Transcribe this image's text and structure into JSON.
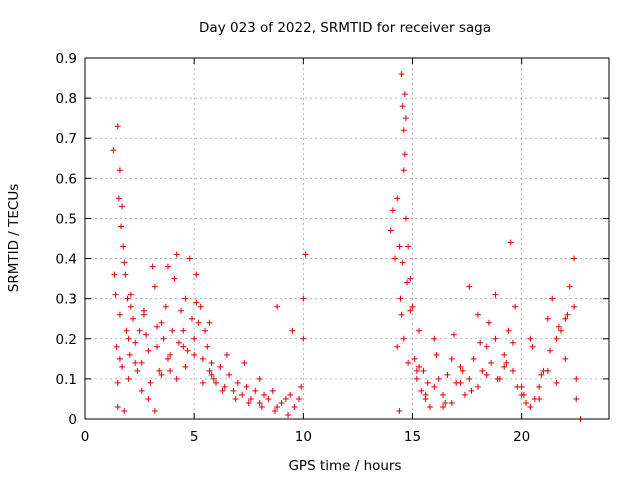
{
  "chart_data": {
    "type": "scatter",
    "title": "Day 023 of 2022, SRMTID for receiver saga",
    "xlabel": "GPS time / hours",
    "ylabel": "SRMTID / TECUs",
    "xlim": [
      0,
      24
    ],
    "ylim": [
      0,
      0.9
    ],
    "xticks": [
      0,
      5,
      10,
      15,
      20
    ],
    "yticks": [
      0,
      0.1,
      0.2,
      0.3,
      0.4,
      0.5,
      0.6,
      0.7,
      0.8,
      0.9
    ],
    "xtick_labels": [
      "0",
      "5",
      "10",
      "15",
      "20"
    ],
    "ytick_labels": [
      "0",
      "0.1",
      "0.2",
      "0.3",
      "0.4",
      "0.5",
      "0.6",
      "0.7",
      "0.8",
      "0.9"
    ],
    "grid": true,
    "marker": "+",
    "marker_color": "#e00000",
    "series": [
      {
        "name": "SRMTID",
        "x": [
          1.3,
          1.35,
          1.4,
          1.45,
          1.5,
          1.5,
          1.55,
          1.6,
          1.6,
          1.65,
          1.7,
          1.7,
          1.75,
          1.8,
          1.85,
          1.9,
          1.95,
          2.0,
          2.05,
          2.1,
          2.2,
          2.3,
          2.4,
          2.5,
          2.6,
          2.7,
          2.8,
          2.9,
          3.0,
          3.1,
          3.2,
          3.3,
          3.4,
          3.5,
          3.6,
          3.7,
          3.8,
          3.9,
          4.0,
          4.1,
          4.2,
          4.3,
          4.4,
          4.5,
          4.6,
          4.7,
          4.8,
          4.9,
          5.0,
          5.1,
          5.2,
          5.3,
          5.4,
          5.5,
          5.6,
          5.7,
          5.8,
          5.9,
          6.0,
          6.2,
          6.4,
          6.6,
          6.8,
          7.0,
          7.2,
          7.4,
          7.6,
          7.8,
          8.0,
          8.2,
          8.4,
          8.6,
          8.8,
          9.0,
          9.2,
          9.4,
          9.6,
          9.8,
          10.0,
          10.1,
          1.5,
          1.8,
          2.0,
          2.3,
          2.6,
          2.9,
          3.2,
          3.5,
          3.8,
          4.2,
          4.6,
          5.0,
          5.4,
          5.8,
          6.3,
          6.9,
          7.5,
          8.1,
          8.7,
          9.3,
          9.9,
          1.6,
          2.1,
          2.7,
          3.3,
          3.9,
          4.5,
          5.1,
          5.7,
          6.5,
          7.3,
          8.0,
          8.8,
          9.5,
          10.0,
          14.0,
          14.1,
          14.2,
          14.3,
          14.4,
          14.45,
          14.5,
          14.55,
          14.6,
          14.65,
          14.7,
          14.8,
          14.9,
          15.0,
          15.1,
          15.2,
          15.3,
          15.4,
          15.5,
          15.6,
          15.8,
          16.0,
          16.2,
          16.4,
          16.6,
          16.8,
          17.0,
          17.2,
          17.4,
          17.6,
          17.8,
          18.0,
          18.2,
          18.4,
          18.6,
          18.8,
          19.0,
          19.2,
          19.4,
          19.5,
          19.6,
          19.8,
          20.0,
          20.2,
          20.4,
          20.6,
          20.8,
          21.0,
          21.2,
          21.4,
          21.6,
          21.8,
          22.0,
          22.2,
          22.4,
          22.5,
          22.7,
          14.3,
          14.6,
          14.9,
          15.3,
          15.7,
          16.1,
          16.5,
          16.9,
          17.3,
          17.7,
          18.1,
          18.5,
          18.9,
          19.3,
          19.7,
          20.1,
          20.5,
          20.9,
          21.3,
          21.7,
          22.1,
          22.5,
          14.4,
          14.8,
          15.2,
          15.6,
          16.0,
          16.4,
          16.8,
          17.2,
          17.6,
          18.0,
          18.4,
          18.8,
          19.2,
          19.6,
          20.0,
          20.4,
          20.8,
          21.2,
          21.6,
          22.0,
          22.4,
          14.5,
          14.55,
          14.6,
          14.65,
          14.7,
          14.75
        ],
        "y": [
          0.67,
          0.36,
          0.31,
          0.18,
          0.73,
          0.09,
          0.55,
          0.62,
          0.26,
          0.48,
          0.53,
          0.13,
          0.43,
          0.39,
          0.36,
          0.22,
          0.3,
          0.2,
          0.16,
          0.28,
          0.25,
          0.19,
          0.12,
          0.22,
          0.14,
          0.27,
          0.21,
          0.17,
          0.09,
          0.38,
          0.33,
          0.18,
          0.12,
          0.24,
          0.2,
          0.28,
          0.38,
          0.16,
          0.22,
          0.35,
          0.41,
          0.19,
          0.27,
          0.22,
          0.3,
          0.17,
          0.4,
          0.25,
          0.2,
          0.36,
          0.24,
          0.28,
          0.15,
          0.22,
          0.18,
          0.12,
          0.14,
          0.1,
          0.09,
          0.13,
          0.08,
          0.11,
          0.07,
          0.09,
          0.06,
          0.08,
          0.05,
          0.07,
          0.04,
          0.06,
          0.05,
          0.07,
          0.03,
          0.04,
          0.05,
          0.06,
          0.03,
          0.05,
          0.2,
          0.41,
          0.03,
          0.02,
          0.1,
          0.14,
          0.07,
          0.05,
          0.02,
          0.11,
          0.15,
          0.1,
          0.13,
          0.16,
          0.09,
          0.11,
          0.07,
          0.05,
          0.04,
          0.03,
          0.02,
          0.01,
          0.08,
          0.15,
          0.31,
          0.26,
          0.23,
          0.12,
          0.18,
          0.29,
          0.24,
          0.16,
          0.14,
          0.1,
          0.28,
          0.22,
          0.3,
          0.47,
          0.52,
          0.4,
          0.55,
          0.43,
          0.3,
          0.86,
          0.78,
          0.72,
          0.66,
          0.5,
          0.43,
          0.35,
          0.28,
          0.15,
          0.1,
          0.22,
          0.07,
          0.12,
          0.05,
          0.03,
          0.08,
          0.1,
          0.06,
          0.11,
          0.04,
          0.09,
          0.13,
          0.06,
          0.1,
          0.15,
          0.08,
          0.12,
          0.18,
          0.14,
          0.2,
          0.1,
          0.16,
          0.22,
          0.44,
          0.12,
          0.08,
          0.06,
          0.04,
          0.03,
          0.05,
          0.08,
          0.12,
          0.25,
          0.3,
          0.2,
          0.22,
          0.15,
          0.33,
          0.4,
          0.1,
          0.0,
          0.18,
          0.2,
          0.27,
          0.13,
          0.09,
          0.16,
          0.04,
          0.21,
          0.12,
          0.07,
          0.19,
          0.24,
          0.1,
          0.14,
          0.28,
          0.06,
          0.18,
          0.11,
          0.17,
          0.23,
          0.26,
          0.05,
          0.02,
          0.14,
          0.12,
          0.06,
          0.2,
          0.03,
          0.15,
          0.09,
          0.33,
          0.26,
          0.11,
          0.31,
          0.13,
          0.19,
          0.08,
          0.2,
          0.05,
          0.12,
          0.09,
          0.25,
          0.28,
          0.26,
          0.39,
          0.62,
          0.81,
          0.75,
          0.34
        ]
      }
    ]
  }
}
